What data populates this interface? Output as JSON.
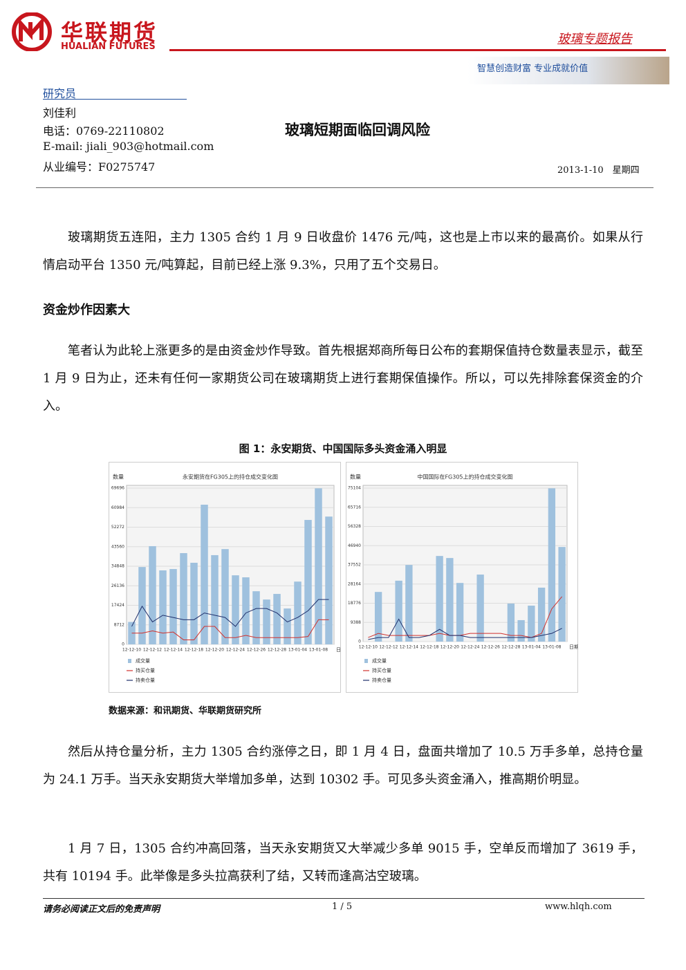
{
  "header": {
    "logo_cn": "华联期货",
    "logo_en": "HUALIAN FUTURES",
    "report_type": "玻璃专题报告",
    "slogan": "智慧创造财富 专业成就价值"
  },
  "researcher": {
    "heading": "研究员",
    "name": "刘佳利",
    "phone": "电话：0769-22110802",
    "email": "E-mail: jiali_903@hotmail.com",
    "license": "从业编号：F0275747"
  },
  "title": "玻璃短期面临回调风险",
  "date": "2013-1-10　星期四",
  "intro": "玻璃期货五连阳，主力 1305 合约 1 月 9 日收盘价 1476 元/吨，这也是上市以来的最高价。如果从行情启动平台 1350 元/吨算起，目前已经上涨 9.3%，只用了五个交易日。",
  "section_heading": "资金炒作因素大",
  "paragraph_before_figure": "笔者认为此轮上涨更多的是由资金炒作导致。首先根据郑商所每日公布的套期保值持仓数量表显示，截至 1 月 9 日为止，还未有任何一家期货公司在玻璃期货上进行套期保值操作。所以，可以先排除套保资金的介入。",
  "figure": {
    "caption": "图 1：永安期货、中国国际多头资金涌入明显",
    "source": "数据来源：和讯期货、华联期货研究所",
    "charts": [
      {
        "type": "bar",
        "title": "永安期货在FG305上的持仓成交变化图",
        "y_label": "数量",
        "x_label": "日期",
        "categories": [
          "12-12-10",
          null,
          "12-12-12",
          null,
          "12-12-14",
          null,
          "12-12-18",
          null,
          "12-12-20",
          null,
          "12-12-24",
          null,
          "12-12-26",
          null,
          "12-12-28",
          null,
          "13-01-04",
          null,
          "13-01-08",
          null
        ],
        "ylim": [
          0,
          69696
        ],
        "yticks": [
          0,
          8712,
          17424,
          26136,
          34848,
          43560,
          52272,
          60984,
          69696
        ],
        "grid": true,
        "series": [
          {
            "name": "成交量",
            "type": "bar",
            "color": "#9fc1de",
            "values": [
              10000,
              34500,
              43800,
              33000,
              33600,
              40700,
              36400,
              62300,
              39800,
              42500,
              30800,
              29900,
              23700,
              20000,
              22500,
              16000,
              28000,
              55500,
              69600,
              57000
            ]
          },
          {
            "name": "持买仓量",
            "type": "line",
            "color": "#d0312d",
            "values": [
              5000,
              5000,
              6000,
              5000,
              5500,
              2000,
              2000,
              8000,
              8000,
              3000,
              3000,
              4000,
              3000,
              3000,
              3000,
              3000,
              3000,
              3500,
              11000,
              11000
            ]
          },
          {
            "name": "持卖仓量",
            "type": "line",
            "color": "#1f2f6b",
            "values": [
              8000,
              17000,
              10000,
              13000,
              12000,
              11000,
              11000,
              14000,
              13000,
              12000,
              8000,
              14000,
              16000,
              16000,
              14000,
              10000,
              12000,
              15000,
              20000,
              20000
            ]
          }
        ]
      },
      {
        "type": "bar",
        "title": "中国国际在FG305上的持仓成交变化图",
        "y_label": "数量",
        "x_label": "日期",
        "categories": [
          "12-12-10",
          null,
          "12-12-12",
          null,
          "12-12-14",
          null,
          "12-12-18",
          null,
          "12-12-20",
          null,
          "12-12-24",
          null,
          "12-12-26",
          null,
          "12-12-28",
          null,
          "13-01-04",
          null,
          "13-01-08",
          null
        ],
        "ylim": [
          0,
          75104
        ],
        "yticks": [
          0,
          9388,
          18776,
          28164,
          37552,
          46940,
          56328,
          65716,
          75104
        ],
        "grid": true,
        "series": [
          {
            "name": "成交量",
            "type": "bar",
            "color": "#9fc1de",
            "values": [
              0,
              24300,
              0,
              29800,
              37500,
              0,
              0,
              41900,
              40900,
              28700,
              0,
              32800,
              0,
              0,
              18600,
              10500,
              17600,
              26400,
              75000,
              46300
            ]
          },
          {
            "name": "持买仓量",
            "type": "line",
            "color": "#d0312d",
            "values": [
              2000,
              4000,
              3000,
              3000,
              3000,
              3000,
              3000,
              4000,
              3000,
              3000,
              4000,
              4000,
              4000,
              4000,
              3000,
              3000,
              2000,
              4000,
              16000,
              22000
            ]
          },
          {
            "name": "持卖仓量",
            "type": "line",
            "color": "#1f2f6b",
            "values": [
              1000,
              2000,
              2000,
              11000,
              2000,
              2000,
              3000,
              6000,
              3000,
              3000,
              2000,
              2000,
              2000,
              2000,
              2000,
              2000,
              2000,
              3000,
              4000,
              6500
            ]
          }
        ]
      }
    ]
  },
  "paragraphs_after_figure": [
    "然后从持仓量分析，主力 1305 合约涨停之日，即 1 月 4 日，盘面共增加了 10.5 万手多单，总持仓量为 24.1 万手。当天永安期货大举增加多单，达到 10302 手。可见多头资金涌入，推高期价明显。",
    "1 月 7 日，1305 合约冲高回落，当天永安期货又大举减少多单 9015 手，空单反而增加了 3619 手，共有 10194 手。此举像是多头拉高获利了结，又转而逢高沽空玻璃。"
  ],
  "footer": {
    "disclaimer": "请务必阅读正文后的免责声明",
    "page": "1 / 5",
    "website": "www.hlqh.com"
  }
}
